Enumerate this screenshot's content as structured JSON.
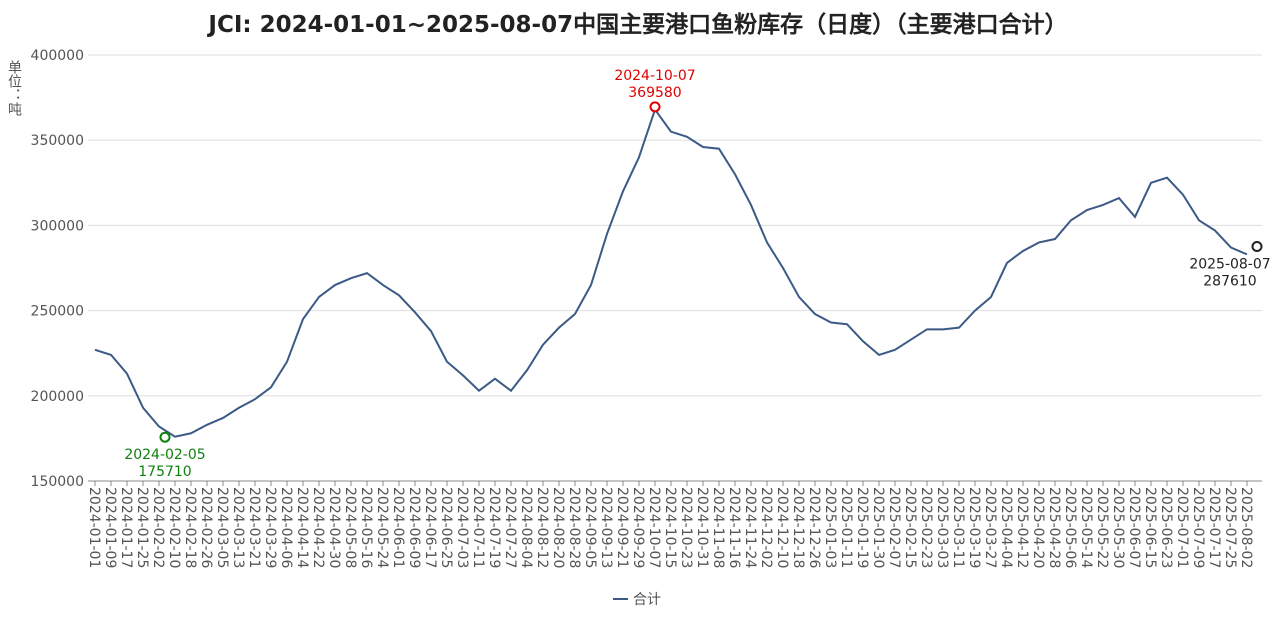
{
  "chart_data": {
    "type": "line",
    "title": "JCI: 2024-01-01~2025-08-07中国主要港口鱼粉库存（日度）（主要港口合计）",
    "y_label": "单位：吨",
    "categories": [
      "2024-01-01",
      "2024-01-09",
      "2024-01-17",
      "2024-01-25",
      "2024-02-02",
      "2024-02-10",
      "2024-02-18",
      "2024-02-26",
      "2024-03-05",
      "2024-03-13",
      "2024-03-21",
      "2024-03-29",
      "2024-04-06",
      "2024-04-14",
      "2024-04-22",
      "2024-04-30",
      "2024-05-08",
      "2024-05-16",
      "2024-05-24",
      "2024-06-01",
      "2024-06-09",
      "2024-06-17",
      "2024-06-25",
      "2024-07-03",
      "2024-07-11",
      "2024-07-19",
      "2024-07-27",
      "2024-08-04",
      "2024-08-12",
      "2024-08-20",
      "2024-08-28",
      "2024-09-05",
      "2024-09-13",
      "2024-09-21",
      "2024-09-29",
      "2024-10-07",
      "2024-10-15",
      "2024-10-23",
      "2024-10-31",
      "2024-11-08",
      "2024-11-16",
      "2024-11-24",
      "2024-12-02",
      "2024-12-10",
      "2024-12-18",
      "2024-12-26",
      "2025-01-03",
      "2025-01-11",
      "2025-01-19",
      "2025-01-30",
      "2025-02-07",
      "2025-02-15",
      "2025-02-23",
      "2025-03-03",
      "2025-03-11",
      "2025-03-19",
      "2025-03-27",
      "2025-04-04",
      "2025-04-12",
      "2025-04-20",
      "2025-04-28",
      "2025-05-06",
      "2025-05-14",
      "2025-05-22",
      "2025-05-30",
      "2025-06-07",
      "2025-06-15",
      "2025-06-23",
      "2025-07-01",
      "2025-07-09",
      "2025-07-17",
      "2025-07-25",
      "2025-08-02"
    ],
    "series": [
      {
        "name": "合计",
        "color": "#3b5a85",
        "values": [
          227000,
          224000,
          213000,
          193000,
          182000,
          176000,
          178000,
          183000,
          187000,
          193000,
          198000,
          205000,
          220000,
          245000,
          258000,
          265000,
          269000,
          272000,
          265000,
          259000,
          249000,
          238000,
          220000,
          212000,
          203000,
          210000,
          203000,
          215000,
          230000,
          240000,
          248000,
          265000,
          295000,
          320000,
          340000,
          368000,
          355000,
          352000,
          346000,
          345000,
          330000,
          312000,
          290000,
          275000,
          258000,
          248000,
          243000,
          242000,
          232000,
          224000,
          227000,
          233000,
          239000,
          239000,
          240000,
          250000,
          258000,
          278000,
          285000,
          290000,
          292000,
          303000,
          309000,
          312000,
          316000,
          305000,
          325000,
          328000,
          318000,
          303000,
          297000,
          287000,
          283000
        ]
      }
    ],
    "ylim": [
      150000,
      400000
    ],
    "yticks": [
      150000,
      200000,
      250000,
      300000,
      350000,
      400000
    ],
    "grid": true,
    "legend": "bottom",
    "annotations": [
      {
        "x": "2024-02-05",
        "value": 175710,
        "color": "#108010",
        "position": "below"
      },
      {
        "x": "2024-10-07",
        "value": 369580,
        "color": "#e00000",
        "position": "above"
      },
      {
        "x": "2025-08-07",
        "value": 287610,
        "color": "#222222",
        "position": "below"
      }
    ]
  }
}
